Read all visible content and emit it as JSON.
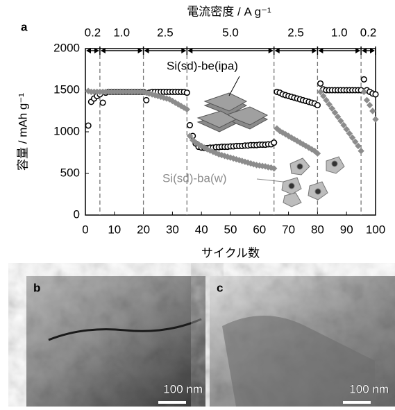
{
  "chart_data": {
    "type": "scatter",
    "panel_label": "a",
    "title": "電流密度 / A g⁻¹",
    "xlabel": "サイクル数",
    "ylabel": "容量 / mAh g⁻¹",
    "xlim": [
      0,
      100
    ],
    "xticks": [
      0,
      10,
      20,
      30,
      40,
      50,
      60,
      70,
      80,
      90,
      100
    ],
    "ylim": [
      0,
      2000
    ],
    "yticks": [
      0,
      500,
      1000,
      1500,
      2000
    ],
    "rate_regions": [
      {
        "label": "0.2",
        "start": 0,
        "end": 5
      },
      {
        "label": "1.0",
        "start": 5,
        "end": 20
      },
      {
        "label": "2.5",
        "start": 20,
        "end": 35
      },
      {
        "label": "5.0",
        "start": 35,
        "end": 65
      },
      {
        "label": "2.5",
        "start": 65,
        "end": 80
      },
      {
        "label": "1.0",
        "start": 80,
        "end": 95
      },
      {
        "label": "0.2",
        "start": 95,
        "end": 100
      }
    ],
    "x": [
      1,
      2,
      3,
      4,
      5,
      6,
      7,
      8,
      9,
      10,
      11,
      12,
      13,
      14,
      15,
      16,
      17,
      18,
      19,
      20,
      21,
      22,
      23,
      24,
      25,
      26,
      27,
      28,
      29,
      30,
      31,
      32,
      33,
      34,
      35,
      36,
      37,
      38,
      39,
      40,
      41,
      42,
      43,
      44,
      45,
      46,
      47,
      48,
      49,
      50,
      51,
      52,
      53,
      54,
      55,
      56,
      57,
      58,
      59,
      60,
      61,
      62,
      63,
      64,
      65,
      66,
      67,
      68,
      69,
      70,
      71,
      72,
      73,
      74,
      75,
      76,
      77,
      78,
      79,
      80,
      81,
      82,
      83,
      84,
      85,
      86,
      87,
      88,
      89,
      90,
      91,
      92,
      93,
      94,
      95,
      96,
      97,
      98,
      99,
      100
    ],
    "series": [
      {
        "name": "Si(sd)-be(ipa)",
        "color": "#000000",
        "marker": "circle",
        "values": [
          1075,
          1360,
          1400,
          1430,
          1450,
          1350,
          1470,
          1480,
          1480,
          1480,
          1480,
          1480,
          1480,
          1480,
          1480,
          1480,
          1480,
          1480,
          1480,
          1480,
          1380,
          1470,
          1480,
          1480,
          1480,
          1480,
          1480,
          1480,
          1480,
          1480,
          1480,
          1480,
          1480,
          1480,
          1470,
          1080,
          950,
          860,
          820,
          810,
          805,
          805,
          810,
          810,
          815,
          815,
          820,
          820,
          820,
          825,
          825,
          830,
          830,
          830,
          835,
          835,
          840,
          840,
          840,
          845,
          845,
          845,
          850,
          850,
          870,
          1480,
          1470,
          1450,
          1440,
          1430,
          1420,
          1410,
          1400,
          1390,
          1380,
          1370,
          1360,
          1350,
          1340,
          1320,
          1580,
          1510,
          1500,
          1500,
          1500,
          1500,
          1500,
          1500,
          1500,
          1500,
          1500,
          1500,
          1500,
          1500,
          1500,
          1630,
          1500,
          1480,
          1460,
          1450
        ]
      },
      {
        "name": "Si(sd)-ba(w)",
        "color": "#8c8c8c",
        "marker": "diamond",
        "values": [
          1490,
          1480,
          1480,
          1480,
          1480,
          1480,
          1480,
          1480,
          1480,
          1480,
          1480,
          1480,
          1480,
          1480,
          1480,
          1480,
          1480,
          1480,
          1480,
          1480,
          1470,
          1460,
          1450,
          1440,
          1430,
          1420,
          1410,
          1400,
          1390,
          1370,
          1350,
          1330,
          1310,
          1290,
          1270,
          950,
          900,
          870,
          850,
          830,
          810,
          790,
          775,
          760,
          745,
          730,
          720,
          710,
          700,
          690,
          680,
          670,
          660,
          650,
          640,
          630,
          620,
          610,
          600,
          595,
          590,
          585,
          575,
          570,
          560,
          1040,
          1010,
          990,
          970,
          950,
          930,
          910,
          890,
          870,
          850,
          830,
          810,
          790,
          770,
          740,
          1480,
          1430,
          1380,
          1330,
          1280,
          1230,
          1180,
          1130,
          1080,
          1030,
          980,
          930,
          880,
          830,
          770,
          1480,
          1380,
          1320,
          1250,
          1150
        ]
      }
    ]
  },
  "panels": [
    {
      "label": "b",
      "scale_bar": "100 nm"
    },
    {
      "label": "c",
      "scale_bar": "100 nm"
    }
  ]
}
